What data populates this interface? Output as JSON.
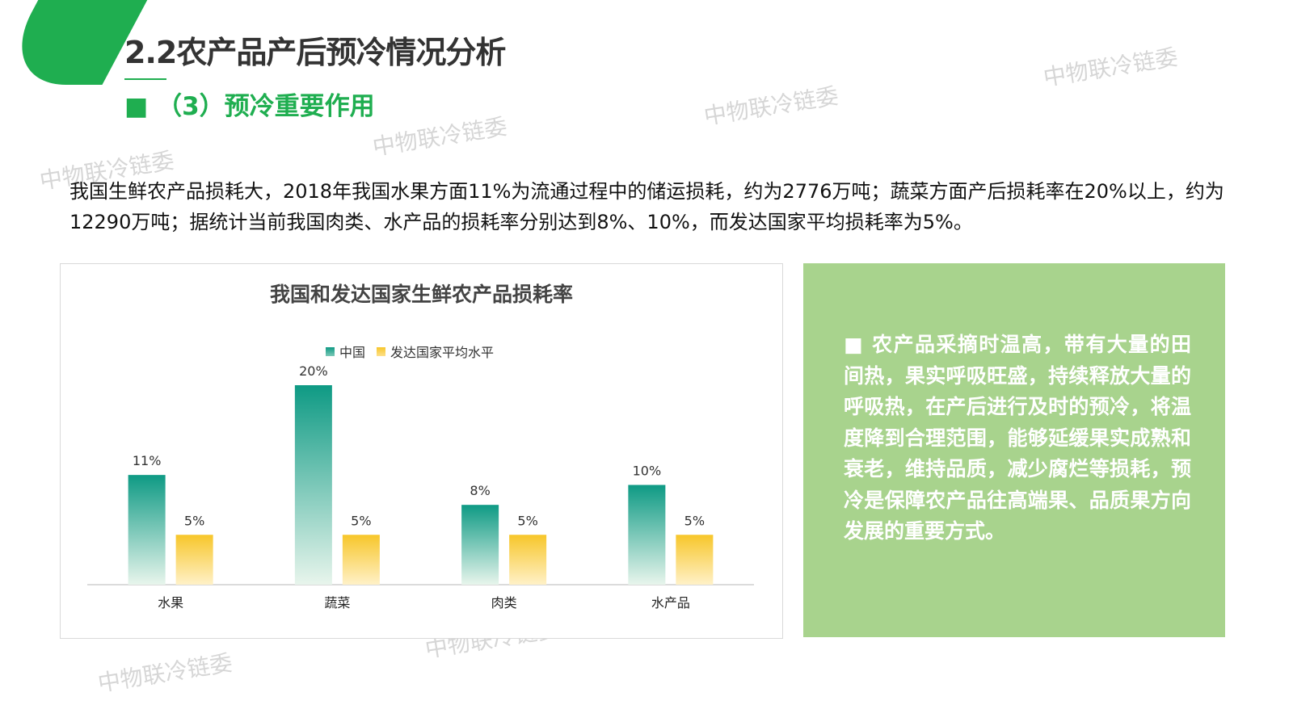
{
  "header": {
    "title": "2.2农产品产后预冷情况分析",
    "subtitle": "■ （3）预冷重要作用"
  },
  "intro_text": "我国生鲜农产品损耗大，2018年我国水果方面11%为流通过程中的储运损耗，约为2776万吨；蔬菜方面产后损耗率在20%以上，约为12290万吨；据统计当前我国肉类、水产品的损耗率分别达到8%、10%，而发达国家平均损耗率为5%。",
  "watermark": "中物联冷链委",
  "colors": {
    "brand": "#1fae50",
    "china_series": "#0e9a84",
    "developed_series": "#f7c62a",
    "info_box": "#a8d38d"
  },
  "chart_data": {
    "type": "bar",
    "title": "我国和发达国家生鲜农产品损耗率",
    "categories": [
      "水果",
      "蔬菜",
      "肉类",
      "水产品"
    ],
    "series": [
      {
        "name": "中国",
        "values": [
          11,
          20,
          8,
          10
        ],
        "labels": [
          "11%",
          "20%",
          "8%",
          "10%"
        ]
      },
      {
        "name": "发达国家平均水平",
        "values": [
          5,
          5,
          5,
          5
        ],
        "labels": [
          "5%",
          "5%",
          "5%",
          "5%"
        ]
      }
    ],
    "ylim": [
      0,
      20
    ],
    "legend": "top",
    "grid": false
  },
  "info_text": "■ 农产品采摘时温高，带有大量的田间热，果实呼吸旺盛，持续释放大量的呼吸热，在产后进行及时的预冷，将温度降到合理范围，能够延缓果实成熟和衰老，维持品质，减少腐烂等损耗，预冷是保障农产品往高端果、品质果方向发展的重要方式。"
}
